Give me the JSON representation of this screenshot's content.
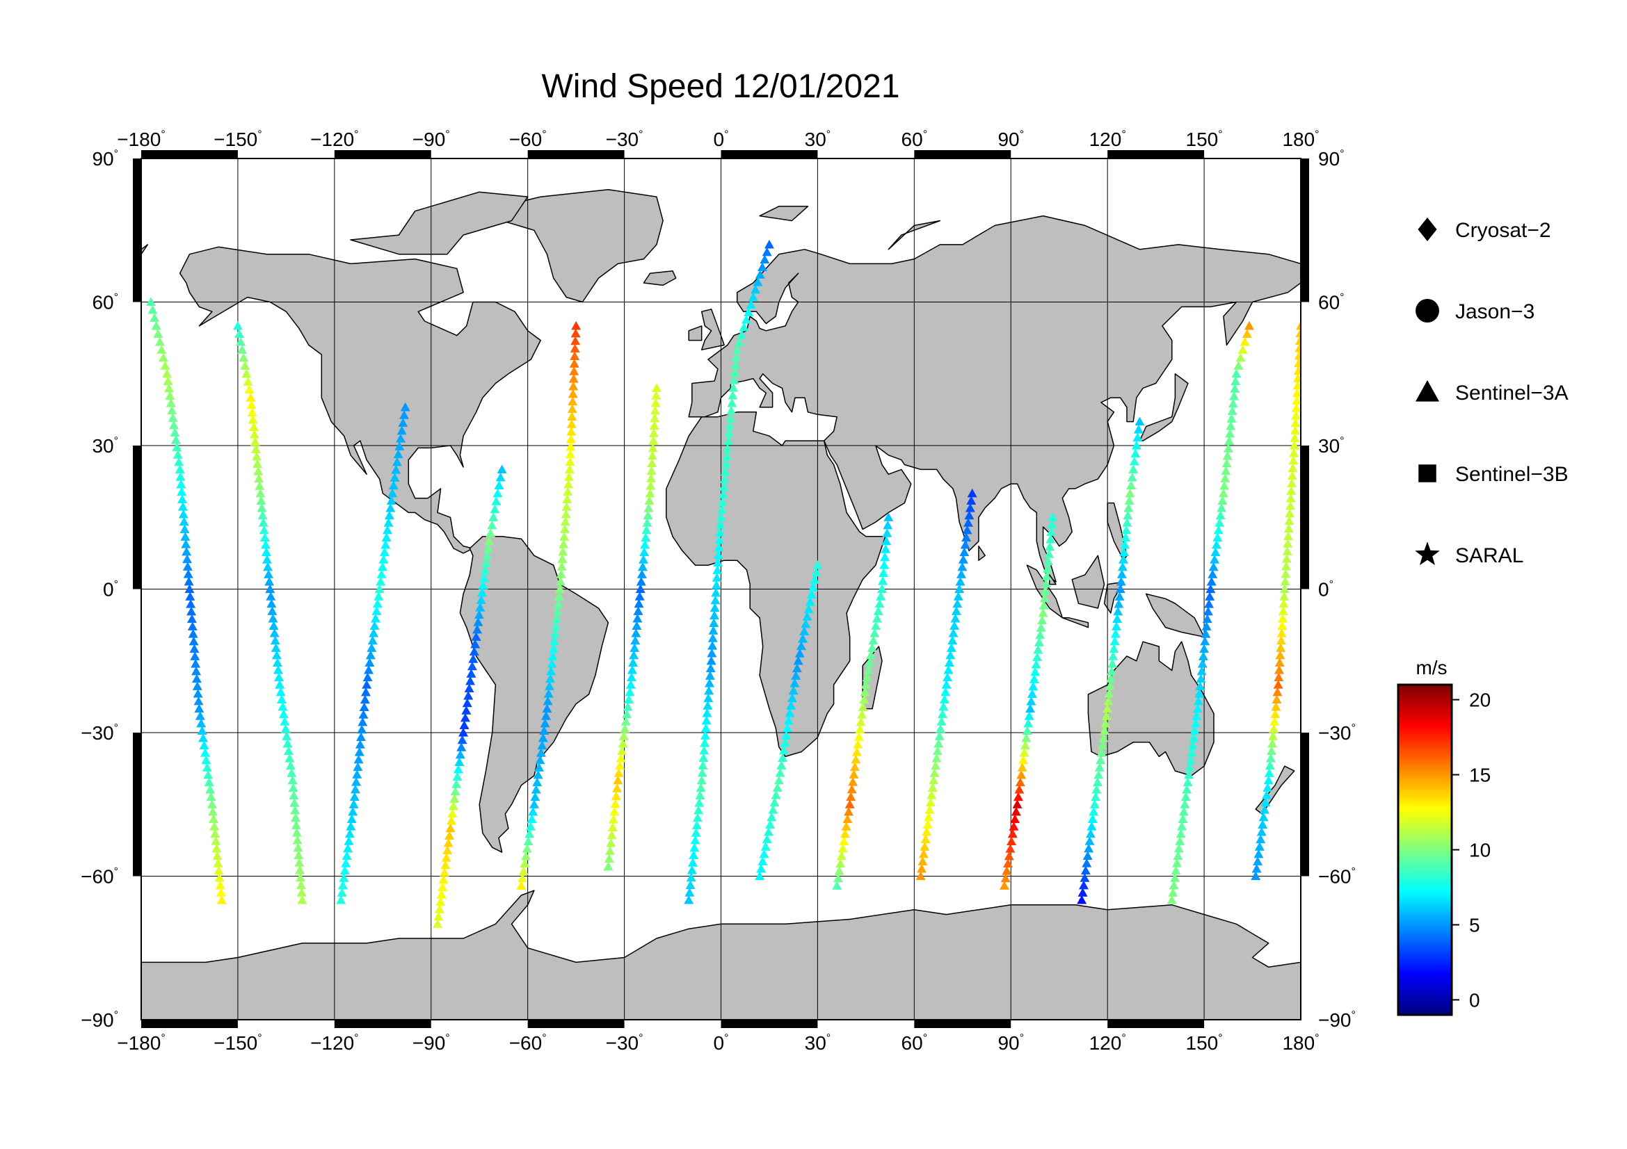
{
  "chart_data": {
    "type": "map-scatter",
    "title": "Wind Speed 12/01/2021",
    "map": {
      "projection": "equirectangular",
      "lon_range": [
        -180,
        180
      ],
      "lat_range": [
        -90,
        90
      ],
      "grid": true,
      "lon_ticks": [
        "−180",
        "−150",
        "−120",
        "−90",
        "−60",
        "−30",
        "0",
        "30",
        "60",
        "90",
        "120",
        "150",
        "180"
      ],
      "lat_ticks": [
        "90",
        "60",
        "30",
        "0",
        "−30",
        "−60",
        "−90"
      ],
      "degree_mark": "°",
      "land_color": "#bebebe",
      "ocean_color": "#ffffff"
    },
    "legend": {
      "placement": "right",
      "items": [
        {
          "label": "Cryosat−2",
          "marker": "diamond"
        },
        {
          "label": "Jason−3",
          "marker": "circle"
        },
        {
          "label": "Sentinel−3A",
          "marker": "triangle"
        },
        {
          "label": "Sentinel−3B",
          "marker": "square"
        },
        {
          "label": "SARAL",
          "marker": "star"
        }
      ]
    },
    "colorbar": {
      "unit_label": "m/s",
      "range": [
        -1,
        21
      ],
      "ticks": [
        "20",
        "15",
        "10",
        "5",
        "0"
      ],
      "colormap": "jet"
    },
    "series": [
      {
        "marker": "triangle",
        "points": [
          [
            -177,
            60,
            9
          ],
          [
            -172,
            45,
            11
          ],
          [
            -168,
            25,
            8
          ],
          [
            -165,
            0,
            4
          ],
          [
            -162,
            -25,
            5
          ],
          [
            -158,
            -45,
            10
          ],
          [
            -155,
            -65,
            13
          ]
        ]
      },
      {
        "marker": "triangle",
        "points": [
          [
            -150,
            55,
            8
          ],
          [
            -146,
            40,
            13
          ],
          [
            -143,
            20,
            10
          ],
          [
            -140,
            0,
            5
          ],
          [
            -137,
            -20,
            7
          ],
          [
            -133,
            -40,
            9
          ],
          [
            -130,
            -65,
            11
          ]
        ]
      },
      {
        "marker": "triangle",
        "points": [
          [
            -118,
            -65,
            8
          ],
          [
            -114,
            -45,
            6
          ],
          [
            -110,
            -20,
            4
          ],
          [
            -106,
            0,
            8
          ],
          [
            -102,
            20,
            6
          ],
          [
            -98,
            38,
            5
          ]
        ]
      },
      {
        "marker": "triangle",
        "points": [
          [
            -88,
            -70,
            12
          ],
          [
            -84,
            -50,
            14
          ],
          [
            -80,
            -30,
            3
          ],
          [
            -76,
            -10,
            4
          ],
          [
            -72,
            10,
            10
          ],
          [
            -68,
            25,
            6
          ]
        ]
      },
      {
        "marker": "triangle",
        "points": [
          [
            -62,
            -62,
            13
          ],
          [
            -58,
            -45,
            6
          ],
          [
            -54,
            -25,
            5
          ],
          [
            -50,
            0,
            10
          ],
          [
            -47,
            25,
            12
          ],
          [
            -45,
            55,
            17
          ]
        ]
      },
      {
        "marker": "triangle",
        "points": [
          [
            -35,
            -58,
            10
          ],
          [
            -32,
            -40,
            14
          ],
          [
            -28,
            -20,
            7
          ],
          [
            -25,
            0,
            4
          ],
          [
            -22,
            20,
            11
          ],
          [
            -20,
            42,
            12
          ]
        ]
      },
      {
        "marker": "triangle",
        "points": [
          [
            -10,
            -65,
            6
          ],
          [
            -6,
            -40,
            9
          ],
          [
            -3,
            -15,
            5
          ],
          [
            0,
            15,
            8
          ],
          [
            5,
            50,
            9
          ],
          [
            15,
            72,
            4
          ]
        ]
      },
      {
        "marker": "triangle",
        "points": [
          [
            12,
            -60,
            7
          ],
          [
            18,
            -40,
            9
          ],
          [
            24,
            -15,
            5
          ],
          [
            30,
            5,
            8
          ]
        ]
      },
      {
        "marker": "triangle",
        "points": [
          [
            36,
            -62,
            9
          ],
          [
            40,
            -45,
            16
          ],
          [
            45,
            -20,
            10
          ],
          [
            50,
            0,
            8
          ],
          [
            52,
            15,
            6
          ]
        ]
      },
      {
        "marker": "triangle",
        "points": [
          [
            62,
            -60,
            15
          ],
          [
            66,
            -40,
            11
          ],
          [
            70,
            -20,
            7
          ],
          [
            74,
            0,
            6
          ],
          [
            78,
            20,
            3
          ]
        ]
      },
      {
        "marker": "triangle",
        "points": [
          [
            88,
            -62,
            15
          ],
          [
            92,
            -45,
            19
          ],
          [
            96,
            -25,
            6
          ],
          [
            100,
            -5,
            10
          ],
          [
            103,
            15,
            8
          ]
        ]
      },
      {
        "marker": "triangle",
        "points": [
          [
            112,
            -65,
            2
          ],
          [
            116,
            -45,
            8
          ],
          [
            120,
            -25,
            11
          ],
          [
            124,
            0,
            5
          ],
          [
            127,
            20,
            10
          ],
          [
            130,
            35,
            6
          ]
        ]
      },
      {
        "marker": "triangle",
        "points": [
          [
            140,
            -65,
            10
          ],
          [
            144,
            -45,
            9
          ],
          [
            148,
            -25,
            7
          ],
          [
            152,
            0,
            4
          ],
          [
            156,
            20,
            10
          ],
          [
            160,
            45,
            9
          ],
          [
            164,
            55,
            15
          ]
        ]
      },
      {
        "marker": "triangle",
        "points": [
          [
            166,
            -60,
            5
          ],
          [
            170,
            -40,
            7
          ],
          [
            173,
            -20,
            16
          ],
          [
            175,
            0,
            11
          ],
          [
            178,
            30,
            12
          ],
          [
            180,
            55,
            14
          ]
        ]
      }
    ]
  }
}
